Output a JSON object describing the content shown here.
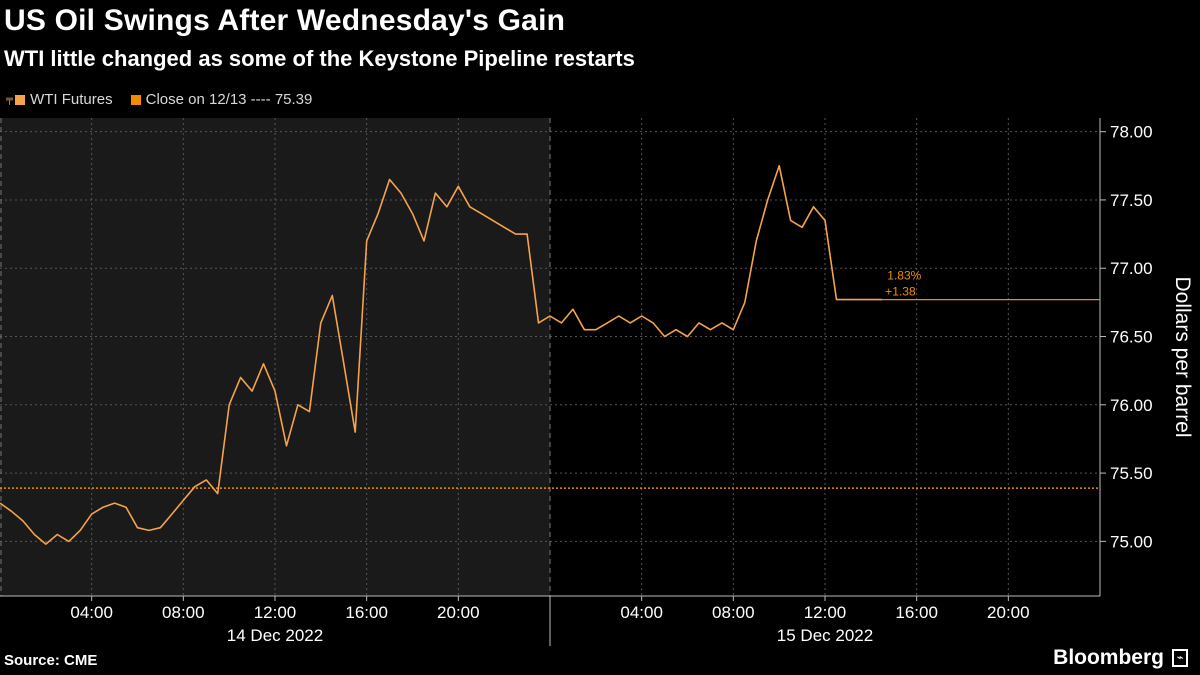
{
  "title": "US Oil Swings After Wednesday's Gain",
  "subtitle": "WTI little changed as some of the Keystone Pipeline restarts",
  "legend": {
    "series_label": "WTI Futures",
    "close_label": "Close on 12/13 ---- 75.39"
  },
  "source": "Source: CME",
  "brand": "Bloomberg",
  "colors": {
    "line": "#f5a34a",
    "close_line": "#f08c00",
    "shade": "#1a1a1a",
    "grid": "#555555",
    "background": "#000000"
  },
  "chart_data": {
    "type": "line",
    "ylabel": "Dollars per barrel",
    "ylim": [
      74.6,
      78.1
    ],
    "y_ticks": [
      "75.00",
      "75.50",
      "76.00",
      "76.50",
      "77.00",
      "77.50",
      "78.00"
    ],
    "x_ticks": [
      {
        "t": 4,
        "label": "04:00"
      },
      {
        "t": 8,
        "label": "08:00"
      },
      {
        "t": 12,
        "label": "12:00"
      },
      {
        "t": 16,
        "label": "16:00"
      },
      {
        "t": 20,
        "label": "20:00"
      },
      {
        "t": 28,
        "label": "04:00"
      },
      {
        "t": 32,
        "label": "08:00"
      },
      {
        "t": 36,
        "label": "12:00"
      },
      {
        "t": 40,
        "label": "16:00"
      },
      {
        "t": 44,
        "label": "20:00"
      }
    ],
    "date_labels": [
      {
        "t": 12,
        "label": "14 Dec 2022"
      },
      {
        "t": 36,
        "label": "15 Dec 2022"
      }
    ],
    "previous_close": 75.39,
    "last_value": 76.77,
    "change_pct": "1.83%",
    "change_abs": "+1.38",
    "series": [
      {
        "name": "WTI Futures",
        "x_hours": [
          0,
          0.5,
          1,
          1.5,
          2,
          2.5,
          3,
          3.5,
          4,
          4.5,
          5,
          5.5,
          6,
          6.5,
          7,
          7.5,
          8,
          8.5,
          9,
          9.5,
          10,
          10.5,
          11,
          11.5,
          12,
          12.5,
          13,
          13.5,
          14,
          14.5,
          15,
          15.5,
          16,
          16.5,
          17,
          17.5,
          18,
          18.5,
          19,
          19.5,
          20,
          20.5,
          21,
          21.5,
          22,
          22.5,
          23,
          23.5,
          24,
          24.5,
          25,
          25.5,
          26,
          26.5,
          27,
          27.5,
          28,
          28.5,
          29,
          29.5,
          30,
          30.5,
          31,
          31.5,
          32,
          32.5,
          33,
          33.5,
          34,
          34.5,
          35,
          35.5,
          36,
          36.5,
          37,
          37.5,
          38,
          38.5
        ],
        "values": [
          75.28,
          75.22,
          75.15,
          75.05,
          74.98,
          75.05,
          75.0,
          75.08,
          75.2,
          75.25,
          75.28,
          75.25,
          75.1,
          75.08,
          75.1,
          75.2,
          75.3,
          75.4,
          75.45,
          75.35,
          76.0,
          76.2,
          76.1,
          76.3,
          76.1,
          75.7,
          76.0,
          75.95,
          76.6,
          76.8,
          76.3,
          75.8,
          77.2,
          77.4,
          77.65,
          77.55,
          77.4,
          77.2,
          77.55,
          77.45,
          77.6,
          77.45,
          77.4,
          77.35,
          77.3,
          77.25,
          77.25,
          76.6,
          76.65,
          76.6,
          76.7,
          76.55,
          76.55,
          76.6,
          76.65,
          76.6,
          76.65,
          76.6,
          76.5,
          76.55,
          76.5,
          76.6,
          76.55,
          76.6,
          76.55,
          76.75,
          77.2,
          77.5,
          77.75,
          77.35,
          77.3,
          77.45,
          77.35,
          76.77,
          76.77,
          76.77,
          76.77,
          76.77
        ]
      }
    ]
  }
}
